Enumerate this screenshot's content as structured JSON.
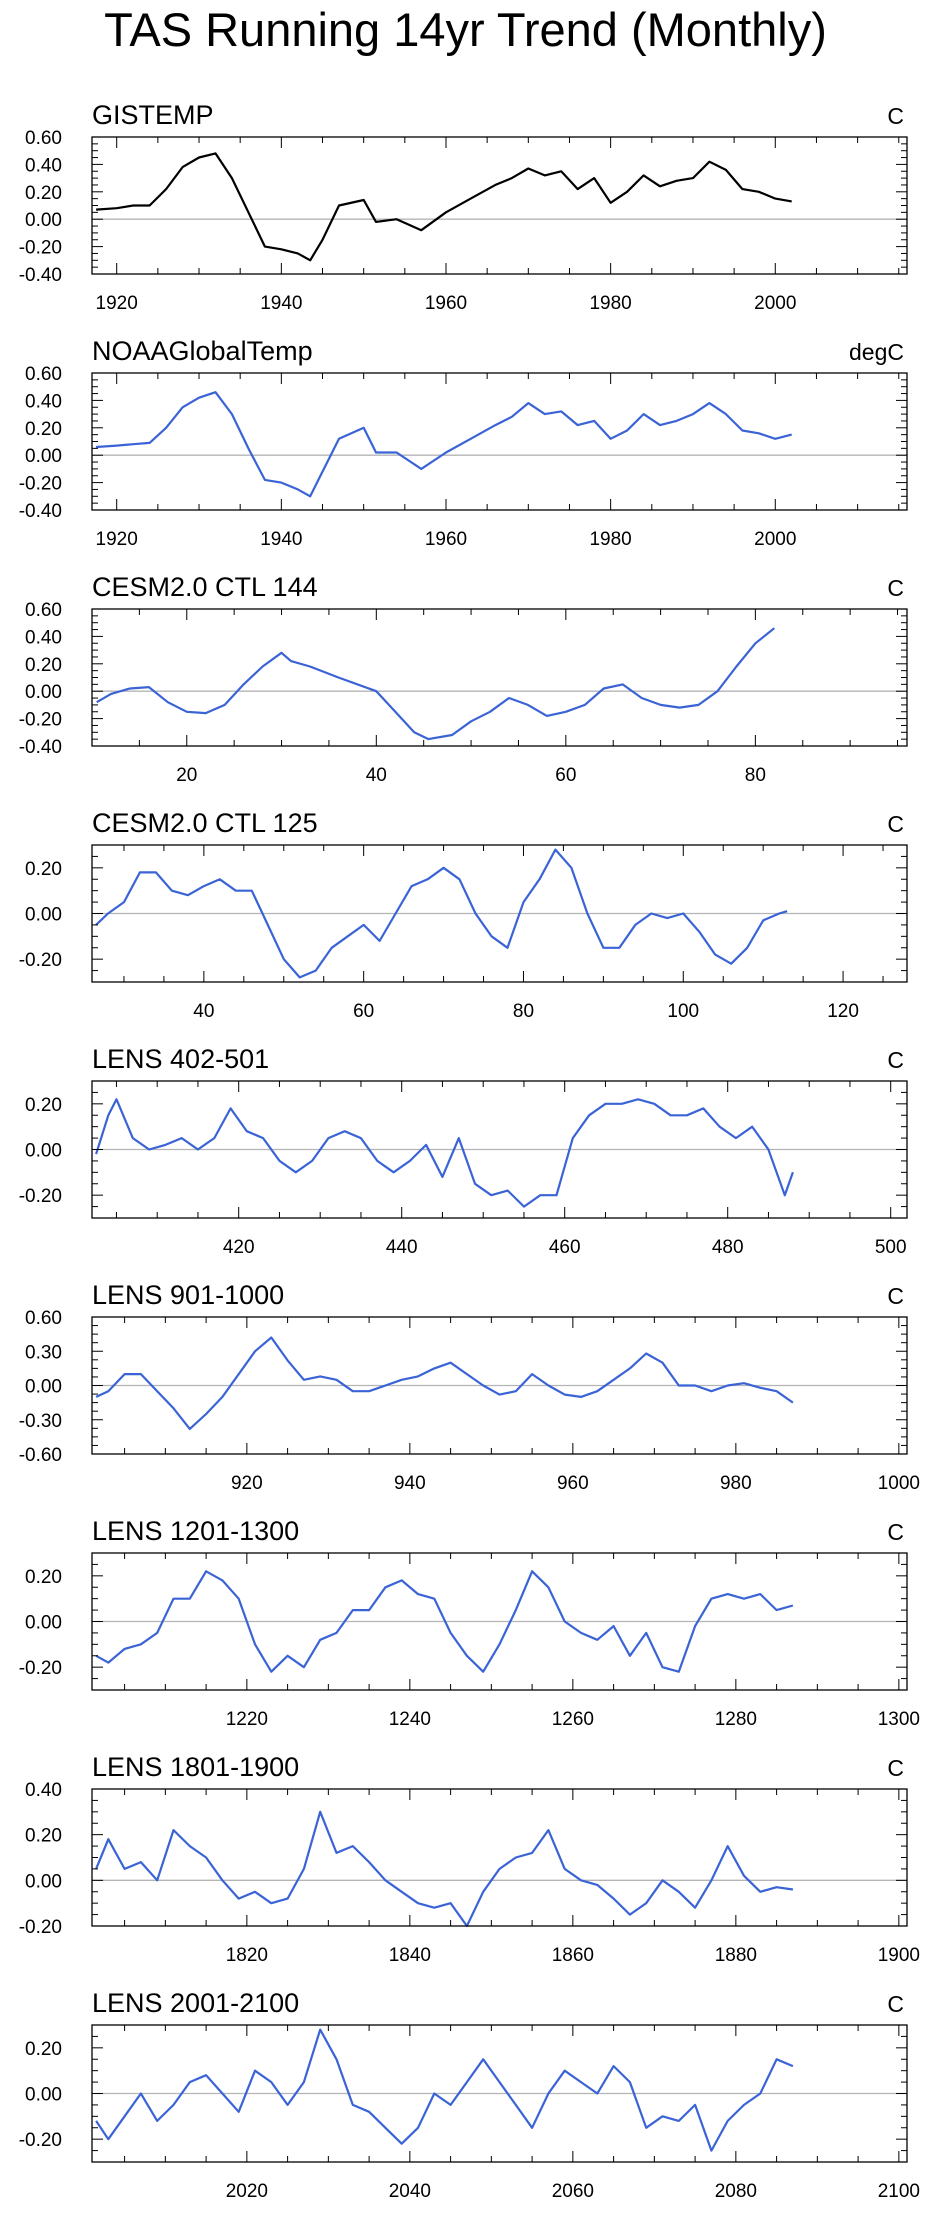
{
  "title": "TAS Running 14yr Trend (Monthly)",
  "colors": {
    "observed": "#000000",
    "model": "#3a63d6",
    "zero_line": "#b4b4b4"
  },
  "chart_data": [
    {
      "type": "line",
      "title": "GISTEMP",
      "units": "C",
      "xlim": [
        1917,
        2016
      ],
      "ylim": [
        -0.4,
        0.6
      ],
      "xticks": [
        1920,
        1940,
        1960,
        1980,
        2000
      ],
      "xticklabels": [
        "1920",
        "1940",
        "1960",
        "1980",
        "2000"
      ],
      "yticks": [
        -0.4,
        -0.2,
        0.0,
        0.2,
        0.4,
        0.6
      ],
      "yticklabels": [
        "-0.40",
        "-0.20",
        "0.00",
        "0.20",
        "0.40",
        "0.60"
      ],
      "series_color": "observed",
      "x": [
        1917.5,
        1920,
        1922,
        1924,
        1926,
        1928,
        1930,
        1932,
        1934,
        1936,
        1938,
        1940,
        1942,
        1943.5,
        1945,
        1947,
        1950,
        1951.5,
        1954,
        1957,
        1960,
        1963,
        1966,
        1968,
        1970,
        1972,
        1974,
        1976,
        1978,
        1980,
        1982,
        1984,
        1986,
        1988,
        1990,
        1992,
        1994,
        1996,
        1998,
        2000,
        2002
      ],
      "y": [
        0.07,
        0.08,
        0.1,
        0.1,
        0.22,
        0.38,
        0.45,
        0.48,
        0.3,
        0.05,
        -0.2,
        -0.22,
        -0.25,
        -0.3,
        -0.15,
        0.1,
        0.14,
        -0.02,
        0.0,
        -0.08,
        0.05,
        0.15,
        0.25,
        0.3,
        0.37,
        0.32,
        0.35,
        0.22,
        0.3,
        0.12,
        0.2,
        0.32,
        0.24,
        0.28,
        0.3,
        0.42,
        0.36,
        0.22,
        0.2,
        0.15,
        0.13
      ]
    },
    {
      "type": "line",
      "title": "NOAAGlobalTemp",
      "units": "degC",
      "xlim": [
        1917,
        2016
      ],
      "ylim": [
        -0.4,
        0.6
      ],
      "xticks": [
        1920,
        1940,
        1960,
        1980,
        2000
      ],
      "xticklabels": [
        "1920",
        "1940",
        "1960",
        "1980",
        "2000"
      ],
      "yticks": [
        -0.4,
        -0.2,
        0.0,
        0.2,
        0.4,
        0.6
      ],
      "yticklabels": [
        "-0.40",
        "-0.20",
        "0.00",
        "0.20",
        "0.40",
        "0.60"
      ],
      "series_color": "model",
      "x": [
        1917.5,
        1920,
        1922,
        1924,
        1926,
        1928,
        1930,
        1932,
        1934,
        1936,
        1938,
        1940,
        1942,
        1943.5,
        1945,
        1947,
        1950,
        1951.5,
        1954,
        1957,
        1960,
        1963,
        1966,
        1968,
        1970,
        1972,
        1974,
        1976,
        1978,
        1980,
        1982,
        1984,
        1986,
        1988,
        1990,
        1992,
        1994,
        1996,
        1998,
        2000,
        2002
      ],
      "y": [
        0.06,
        0.07,
        0.08,
        0.09,
        0.2,
        0.35,
        0.42,
        0.46,
        0.3,
        0.05,
        -0.18,
        -0.2,
        -0.25,
        -0.3,
        -0.12,
        0.12,
        0.2,
        0.02,
        0.02,
        -0.1,
        0.02,
        0.12,
        0.22,
        0.28,
        0.38,
        0.3,
        0.32,
        0.22,
        0.25,
        0.12,
        0.18,
        0.3,
        0.22,
        0.25,
        0.3,
        0.38,
        0.3,
        0.18,
        0.16,
        0.12,
        0.15
      ]
    },
    {
      "type": "line",
      "title": "CESM2.0 CTL 144",
      "units": "C",
      "xlim": [
        10,
        96
      ],
      "ylim": [
        -0.4,
        0.6
      ],
      "xticks": [
        20,
        40,
        60,
        80
      ],
      "xticklabels": [
        "20",
        "40",
        "60",
        "80"
      ],
      "yticks": [
        -0.4,
        -0.2,
        0.0,
        0.2,
        0.4,
        0.6
      ],
      "yticklabels": [
        "-0.40",
        "-0.20",
        "0.00",
        "0.20",
        "0.40",
        "0.60"
      ],
      "series_color": "model",
      "x": [
        10.5,
        12,
        14,
        16,
        18,
        20,
        22,
        24,
        26,
        28,
        30,
        31,
        33,
        36,
        40,
        42,
        44,
        45.5,
        48,
        50,
        52,
        54,
        56,
        58,
        60,
        62,
        64,
        66,
        68,
        70,
        72,
        74,
        76,
        78,
        80,
        82
      ],
      "y": [
        -0.08,
        -0.02,
        0.02,
        0.03,
        -0.08,
        -0.15,
        -0.16,
        -0.1,
        0.05,
        0.18,
        0.28,
        0.22,
        0.18,
        0.1,
        0.0,
        -0.15,
        -0.3,
        -0.35,
        -0.32,
        -0.22,
        -0.15,
        -0.05,
        -0.1,
        -0.18,
        -0.15,
        -0.1,
        0.02,
        0.05,
        -0.05,
        -0.1,
        -0.12,
        -0.1,
        0.0,
        0.18,
        0.35,
        0.46
      ]
    },
    {
      "type": "line",
      "title": "CESM2.0 CTL 125",
      "units": "C",
      "xlim": [
        26,
        128
      ],
      "ylim": [
        -0.3,
        0.3
      ],
      "xticks": [
        40,
        60,
        80,
        100,
        120
      ],
      "xticklabels": [
        "40",
        "60",
        "80",
        "100",
        "120"
      ],
      "yticks": [
        -0.2,
        0.0,
        0.2
      ],
      "yticklabels": [
        "-0.20",
        "0.00",
        "0.20"
      ],
      "series_color": "model",
      "x": [
        26.5,
        28,
        30,
        32,
        34,
        36,
        38,
        40,
        42,
        44,
        46,
        48,
        50,
        52,
        54,
        56,
        58,
        60,
        62,
        64,
        66,
        68,
        70,
        72,
        74,
        76,
        78,
        80,
        82,
        84,
        86,
        88,
        90,
        92,
        94,
        96,
        98,
        100,
        102,
        104,
        106,
        108,
        110,
        112,
        113
      ],
      "y": [
        -0.05,
        0.0,
        0.05,
        0.18,
        0.18,
        0.1,
        0.08,
        0.12,
        0.15,
        0.1,
        0.1,
        -0.05,
        -0.2,
        -0.28,
        -0.25,
        -0.15,
        -0.1,
        -0.05,
        -0.12,
        0.0,
        0.12,
        0.15,
        0.2,
        0.15,
        0.0,
        -0.1,
        -0.15,
        0.05,
        0.15,
        0.28,
        0.2,
        0.0,
        -0.15,
        -0.15,
        -0.05,
        0.0,
        -0.02,
        0.0,
        -0.08,
        -0.18,
        -0.22,
        -0.15,
        -0.03,
        0.0,
        0.01
      ]
    },
    {
      "type": "line",
      "title": "LENS 402-501",
      "units": "C",
      "xlim": [
        402,
        502
      ],
      "ylim": [
        -0.3,
        0.3
      ],
      "xticks": [
        420,
        440,
        460,
        480,
        500
      ],
      "xticklabels": [
        "420",
        "440",
        "460",
        "480",
        "500"
      ],
      "yticks": [
        -0.2,
        0.0,
        0.2
      ],
      "yticklabels": [
        "-0.20",
        "0.00",
        "0.20"
      ],
      "series_color": "model",
      "x": [
        402.5,
        404,
        405,
        407,
        409,
        411,
        413,
        415,
        417,
        419,
        421,
        423,
        425,
        427,
        429,
        431,
        433,
        435,
        437,
        439,
        441,
        443,
        445,
        447,
        449,
        451,
        453,
        455,
        457,
        459,
        461,
        463,
        465,
        467,
        469,
        471,
        473,
        475,
        477,
        479,
        481,
        483,
        485,
        487,
        488
      ],
      "y": [
        -0.02,
        0.15,
        0.22,
        0.05,
        0.0,
        0.02,
        0.05,
        0.0,
        0.05,
        0.18,
        0.08,
        0.05,
        -0.05,
        -0.1,
        -0.05,
        0.05,
        0.08,
        0.05,
        -0.05,
        -0.1,
        -0.05,
        0.02,
        -0.12,
        0.05,
        -0.15,
        -0.2,
        -0.18,
        -0.25,
        -0.2,
        -0.2,
        0.05,
        0.15,
        0.2,
        0.2,
        0.22,
        0.2,
        0.15,
        0.15,
        0.18,
        0.1,
        0.05,
        0.1,
        0.0,
        -0.2,
        -0.1
      ]
    },
    {
      "type": "line",
      "title": "LENS 901-1000",
      "units": "C",
      "xlim": [
        901,
        1001
      ],
      "ylim": [
        -0.6,
        0.6
      ],
      "xticks": [
        920,
        940,
        960,
        980,
        1000
      ],
      "xticklabels": [
        "920",
        "940",
        "960",
        "980",
        "1000"
      ],
      "yticks": [
        -0.6,
        -0.3,
        0.0,
        0.3,
        0.6
      ],
      "yticklabels": [
        "-0.60",
        "-0.30",
        "0.00",
        "0.30",
        "0.60"
      ],
      "series_color": "model",
      "x": [
        901.5,
        903,
        905,
        907,
        909,
        911,
        913,
        915,
        917,
        919,
        921,
        923,
        925,
        927,
        929,
        931,
        933,
        935,
        937,
        939,
        941,
        943,
        945,
        947,
        949,
        951,
        953,
        955,
        957,
        959,
        961,
        963,
        965,
        967,
        969,
        971,
        973,
        975,
        977,
        979,
        981,
        983,
        985,
        987
      ],
      "y": [
        -0.1,
        -0.05,
        0.1,
        0.1,
        -0.05,
        -0.2,
        -0.38,
        -0.25,
        -0.1,
        0.1,
        0.3,
        0.42,
        0.22,
        0.05,
        0.08,
        0.05,
        -0.05,
        -0.05,
        0.0,
        0.05,
        0.08,
        0.15,
        0.2,
        0.1,
        0.0,
        -0.08,
        -0.05,
        0.1,
        0.0,
        -0.08,
        -0.1,
        -0.05,
        0.05,
        0.15,
        0.28,
        0.2,
        0.0,
        0.0,
        -0.05,
        0.0,
        0.02,
        -0.02,
        -0.05,
        -0.15
      ]
    },
    {
      "type": "line",
      "title": "LENS 1201-1300",
      "units": "C",
      "xlim": [
        1201,
        1301
      ],
      "ylim": [
        -0.3,
        0.3
      ],
      "xticks": [
        1220,
        1240,
        1260,
        1280,
        1300
      ],
      "xticklabels": [
        "1220",
        "1240",
        "1260",
        "1280",
        "1300"
      ],
      "yticks": [
        -0.2,
        0.0,
        0.2
      ],
      "yticklabels": [
        "-0.20",
        "0.00",
        "0.20"
      ],
      "series_color": "model",
      "x": [
        1201.5,
        1203,
        1205,
        1207,
        1209,
        1211,
        1213,
        1215,
        1217,
        1219,
        1221,
        1223,
        1225,
        1227,
        1229,
        1231,
        1233,
        1235,
        1237,
        1239,
        1241,
        1243,
        1245,
        1247,
        1249,
        1251,
        1253,
        1255,
        1257,
        1259,
        1261,
        1263,
        1265,
        1267,
        1269,
        1271,
        1273,
        1275,
        1277,
        1279,
        1281,
        1283,
        1285,
        1287
      ],
      "y": [
        -0.15,
        -0.18,
        -0.12,
        -0.1,
        -0.05,
        0.1,
        0.1,
        0.22,
        0.18,
        0.1,
        -0.1,
        -0.22,
        -0.15,
        -0.2,
        -0.08,
        -0.05,
        0.05,
        0.05,
        0.15,
        0.18,
        0.12,
        0.1,
        -0.05,
        -0.15,
        -0.22,
        -0.1,
        0.05,
        0.22,
        0.15,
        0.0,
        -0.05,
        -0.08,
        -0.02,
        -0.15,
        -0.05,
        -0.2,
        -0.22,
        -0.02,
        0.1,
        0.12,
        0.1,
        0.12,
        0.05,
        0.07
      ]
    },
    {
      "type": "line",
      "title": "LENS 1801-1900",
      "units": "C",
      "xlim": [
        1801,
        1901
      ],
      "ylim": [
        -0.2,
        0.4
      ],
      "xticks": [
        1820,
        1840,
        1860,
        1880,
        1900
      ],
      "xticklabels": [
        "1820",
        "1840",
        "1860",
        "1880",
        "1900"
      ],
      "yticks": [
        -0.2,
        0.0,
        0.2,
        0.4
      ],
      "yticklabels": [
        "-0.20",
        "0.00",
        "0.20",
        "0.40"
      ],
      "series_color": "model",
      "x": [
        1801.5,
        1803,
        1805,
        1807,
        1809,
        1811,
        1813,
        1815,
        1817,
        1819,
        1821,
        1823,
        1825,
        1827,
        1829,
        1831,
        1833,
        1835,
        1837,
        1839,
        1841,
        1843,
        1845,
        1847,
        1849,
        1851,
        1853,
        1855,
        1857,
        1859,
        1861,
        1863,
        1865,
        1867,
        1869,
        1871,
        1873,
        1875,
        1877,
        1879,
        1881,
        1883,
        1885,
        1887
      ],
      "y": [
        0.05,
        0.18,
        0.05,
        0.08,
        0.0,
        0.22,
        0.15,
        0.1,
        0.0,
        -0.08,
        -0.05,
        -0.1,
        -0.08,
        0.05,
        0.3,
        0.12,
        0.15,
        0.08,
        0.0,
        -0.05,
        -0.1,
        -0.12,
        -0.1,
        -0.2,
        -0.05,
        0.05,
        0.1,
        0.12,
        0.22,
        0.05,
        0.0,
        -0.02,
        -0.08,
        -0.15,
        -0.1,
        0.0,
        -0.05,
        -0.12,
        0.0,
        0.15,
        0.02,
        -0.05,
        -0.03,
        -0.04
      ]
    },
    {
      "type": "line",
      "title": "LENS 2001-2100",
      "units": "C",
      "xlim": [
        2001,
        2101
      ],
      "ylim": [
        -0.3,
        0.3
      ],
      "xticks": [
        2020,
        2040,
        2060,
        2080,
        2100
      ],
      "xticklabels": [
        "2020",
        "2040",
        "2060",
        "2080",
        "2100"
      ],
      "yticks": [
        -0.2,
        0.0,
        0.2
      ],
      "yticklabels": [
        "-0.20",
        "0.00",
        "0.20"
      ],
      "series_color": "model",
      "x": [
        2001.5,
        2003,
        2005,
        2007,
        2009,
        2011,
        2013,
        2015,
        2017,
        2019,
        2021,
        2023,
        2025,
        2027,
        2029,
        2031,
        2033,
        2035,
        2037,
        2039,
        2041,
        2043,
        2045,
        2047,
        2049,
        2051,
        2053,
        2055,
        2057,
        2059,
        2061,
        2063,
        2065,
        2067,
        2069,
        2071,
        2073,
        2075,
        2077,
        2079,
        2081,
        2083,
        2085,
        2087
      ],
      "y": [
        -0.12,
        -0.2,
        -0.1,
        0.0,
        -0.12,
        -0.05,
        0.05,
        0.08,
        0.0,
        -0.08,
        0.1,
        0.05,
        -0.05,
        0.05,
        0.28,
        0.15,
        -0.05,
        -0.08,
        -0.15,
        -0.22,
        -0.15,
        0.0,
        -0.05,
        0.05,
        0.15,
        0.05,
        -0.05,
        -0.15,
        0.0,
        0.1,
        0.05,
        0.0,
        0.12,
        0.05,
        -0.15,
        -0.1,
        -0.12,
        -0.05,
        -0.25,
        -0.12,
        -0.05,
        0.0,
        0.15,
        0.12
      ]
    }
  ]
}
